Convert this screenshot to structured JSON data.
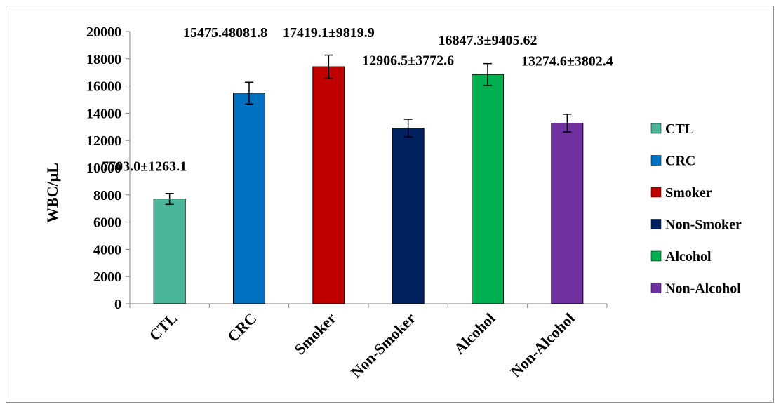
{
  "chart_data": {
    "type": "bar",
    "ylabel": "WBC/μL",
    "xlabel": "",
    "ylim": [
      0,
      20000
    ],
    "yticks": [
      0,
      2000,
      4000,
      6000,
      8000,
      10000,
      12000,
      14000,
      16000,
      18000,
      20000
    ],
    "categories": [
      "CTL",
      "CRC",
      "Smoker",
      "Non-Smoker",
      "Alcohol",
      "Non-Alcohol"
    ],
    "values": [
      7703.0,
      15475.48,
      17419.1,
      12906.5,
      16847.3,
      13274.6
    ],
    "error_plus_minus": [
      400,
      800,
      850,
      650,
      800,
      650
    ],
    "data_labels": [
      "7703.0±1263.1",
      "15475.48081.8",
      "17419.1±9819.9",
      "12906.5±3772.6",
      "16847.3±9405.62",
      "13274.6±3802.4"
    ],
    "colors": [
      "#4ab59a",
      "#0070c0",
      "#c00000",
      "#002060",
      "#00b050",
      "#7030a0"
    ],
    "legend": {
      "placement": "right",
      "entries": [
        "CTL",
        "CRC",
        "Smoker",
        "Non-Smoker",
        "Alcohol",
        "Non-Alcohol"
      ]
    },
    "grid": false
  }
}
